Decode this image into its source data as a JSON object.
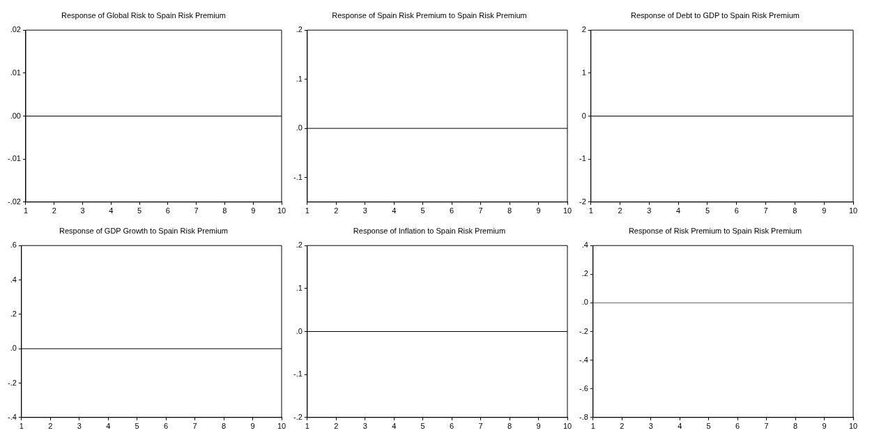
{
  "chart_data": [
    {
      "type": "line",
      "title": "Response of Global Risk to Spain Risk Premium",
      "xlim": [
        1,
        10
      ],
      "xticks": [
        1,
        2,
        3,
        4,
        5,
        6,
        7,
        8,
        9,
        10
      ],
      "ylim": [
        -0.02,
        0.02
      ],
      "yticks": [
        {
          "value": -0.02,
          "label": "-.02"
        },
        {
          "value": -0.01,
          "label": "-.01"
        },
        {
          "value": 0,
          "label": ".00"
        },
        {
          "value": 0.01,
          "label": ".01"
        },
        {
          "value": 0.02,
          "label": ".02"
        }
      ],
      "ref_lines": [
        {
          "axis": "y",
          "value": 0,
          "color": "#000000"
        }
      ],
      "grid": false,
      "legend": false
    },
    {
      "type": "line",
      "title": "Response of Spain Risk Premium to Spain Risk Premium",
      "xlim": [
        1,
        10
      ],
      "xticks": [
        1,
        2,
        3,
        4,
        5,
        6,
        7,
        8,
        9,
        10
      ],
      "ylim": [
        -0.15,
        0.2
      ],
      "yticks": [
        {
          "value": -0.1,
          "label": "-.1"
        },
        {
          "value": 0,
          "label": ".0"
        },
        {
          "value": 0.1,
          "label": ".1"
        },
        {
          "value": 0.2,
          "label": ".2"
        }
      ],
      "ref_lines": [
        {
          "axis": "y",
          "value": 0,
          "color": "#000000"
        }
      ],
      "grid": false,
      "legend": false
    },
    {
      "type": "line",
      "title": "Response of Debt to GDP to Spain Risk Premium",
      "xlim": [
        1,
        10
      ],
      "xticks": [
        1,
        2,
        3,
        4,
        5,
        6,
        7,
        8,
        9,
        10
      ],
      "ylim": [
        -2,
        2
      ],
      "yticks": [
        -2,
        -1,
        0,
        1,
        2
      ],
      "ref_lines": [
        {
          "axis": "y",
          "value": 0,
          "color": "#000000"
        }
      ],
      "grid": false,
      "legend": false
    },
    {
      "type": "line",
      "title": "Response of GDP Growth to Spain Risk Premium",
      "xlim": [
        1,
        10
      ],
      "xticks": [
        1,
        2,
        3,
        4,
        5,
        6,
        7,
        8,
        9,
        10
      ],
      "ylim": [
        -0.4,
        0.6
      ],
      "yticks": [
        {
          "value": -0.4,
          "label": "-.4"
        },
        {
          "value": -0.2,
          "label": "-.2"
        },
        {
          "value": 0,
          "label": ".0"
        },
        {
          "value": 0.2,
          "label": ".2"
        },
        {
          "value": 0.4,
          "label": ".4"
        },
        {
          "value": 0.6,
          "label": ".6"
        }
      ],
      "ref_lines": [
        {
          "axis": "y",
          "value": 0,
          "color": "#000000"
        }
      ],
      "grid": false,
      "legend": false
    },
    {
      "type": "line",
      "title": "Response of Inflation to Spain Risk Premium",
      "xlim": [
        1,
        10
      ],
      "xticks": [
        1,
        2,
        3,
        4,
        5,
        6,
        7,
        8,
        9,
        10
      ],
      "ylim": [
        -0.2,
        0.2
      ],
      "yticks": [
        {
          "value": -0.2,
          "label": "-.2"
        },
        {
          "value": -0.1,
          "label": "-.1"
        },
        {
          "value": 0,
          "label": ".0"
        },
        {
          "value": 0.1,
          "label": ".1"
        },
        {
          "value": 0.2,
          "label": ".2"
        }
      ],
      "ref_lines": [
        {
          "axis": "y",
          "value": 0,
          "color": "#000000"
        }
      ],
      "grid": false,
      "legend": false
    },
    {
      "type": "line",
      "title": "Response of Risk Premium to Spain Risk Premium",
      "xlim": [
        1,
        10
      ],
      "xticks": [
        1,
        2,
        3,
        4,
        5,
        6,
        7,
        8,
        9,
        10
      ],
      "ylim": [
        -0.8,
        0.4
      ],
      "yticks": [
        {
          "value": -0.8,
          "label": "-.8"
        },
        {
          "value": -0.6,
          "label": "-.6"
        },
        {
          "value": -0.4,
          "label": "-.4"
        },
        {
          "value": -0.2,
          "label": "-.2"
        },
        {
          "value": 0,
          "label": ".0"
        },
        {
          "value": 0.2,
          "label": ".2"
        },
        {
          "value": 0.4,
          "label": ".4"
        }
      ],
      "ref_lines": [
        {
          "axis": "y",
          "value": 0,
          "color": "#666666"
        }
      ],
      "grid": false,
      "legend": false
    }
  ]
}
